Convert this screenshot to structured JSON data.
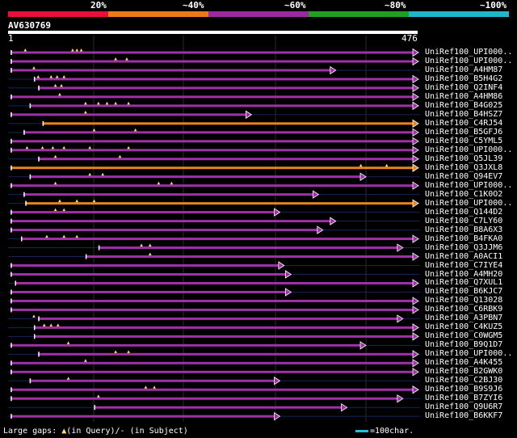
{
  "scale_labels": [
    "20%",
    "~40%",
    "~60%",
    "~80%",
    "~100%"
  ],
  "colorbar": [
    "#e8103a",
    "#e87a18",
    "#9a2aa0",
    "#20a020",
    "#20b8c8"
  ],
  "query": {
    "name": "AV630769",
    "start": "1",
    "end": "476"
  },
  "footer": {
    "gaps_prefix": "Large gaps: ",
    "triangle_glyph": "▲",
    "in_query": "(in Query)/",
    "dash": "-",
    "in_subject": " (in Subject)",
    "scale": "=100char."
  },
  "hits": [
    {
      "label": "UniRef100_UPI000..",
      "start": 3,
      "end": 476,
      "color": "purple",
      "gaps": [
        20,
        75,
        80,
        85
      ]
    },
    {
      "label": "UniRef100_UPI000..",
      "start": 3,
      "end": 476,
      "color": "purple",
      "gaps": [
        125,
        138
      ]
    },
    {
      "label": "UniRef100_A4HM87",
      "start": 3,
      "end": 380,
      "color": "purple",
      "gaps": [
        30
      ]
    },
    {
      "label": "UniRef100_B5H4G2",
      "start": 30,
      "end": 476,
      "color": "purple",
      "gaps": [
        35,
        50,
        57,
        65
      ]
    },
    {
      "label": "UniRef100_Q2INF4",
      "start": 35,
      "end": 476,
      "color": "purple",
      "gaps": [
        55,
        62
      ]
    },
    {
      "label": "UniRef100_A4HM86",
      "start": 3,
      "end": 476,
      "color": "purple",
      "gaps": [
        60
      ]
    },
    {
      "label": "UniRef100_B4G025",
      "start": 25,
      "end": 476,
      "color": "purple",
      "gaps": [
        90,
        105,
        115,
        125,
        140
      ]
    },
    {
      "label": "UniRef100_B4HSZ7",
      "start": 3,
      "end": 282,
      "color": "purple",
      "gaps": [
        90
      ]
    },
    {
      "label": "UniRef100_C4RJ54",
      "start": 40,
      "end": 476,
      "color": "orange",
      "gaps": []
    },
    {
      "label": "UniRef100_B5GFJ6",
      "start": 18,
      "end": 476,
      "color": "purple",
      "gaps": [
        100,
        148
      ]
    },
    {
      "label": "UniRef100_C5YML5",
      "start": 3,
      "end": 476,
      "color": "purple",
      "gaps": []
    },
    {
      "label": "UniRef100_UPI000..",
      "start": 3,
      "end": 476,
      "color": "purple",
      "gaps": [
        22,
        40,
        52,
        65,
        95,
        140
      ]
    },
    {
      "label": "UniRef100_Q5JL39",
      "start": 35,
      "end": 476,
      "color": "purple",
      "gaps": [
        55,
        130
      ]
    },
    {
      "label": "UniRef100_Q3JXL8",
      "start": 3,
      "end": 476,
      "color": "orange",
      "gaps": [
        410,
        440
      ]
    },
    {
      "label": "UniRef100_Q94EV7",
      "start": 25,
      "end": 415,
      "color": "purple",
      "gaps": [
        95,
        110
      ]
    },
    {
      "label": "UniRef100_UPI000..",
      "start": 3,
      "end": 476,
      "color": "purple",
      "gaps": [
        55,
        175,
        190
      ]
    },
    {
      "label": "UniRef100_C1K0O2",
      "start": 18,
      "end": 360,
      "color": "purple",
      "gaps": []
    },
    {
      "label": "UniRef100_UPI000..",
      "start": 20,
      "end": 476,
      "color": "orange",
      "gaps": [
        60,
        80,
        100
      ]
    },
    {
      "label": "UniRef100_Q144D2",
      "start": 3,
      "end": 315,
      "color": "purple",
      "gaps": [
        55,
        65
      ]
    },
    {
      "label": "UniRef100_C7LY60",
      "start": 3,
      "end": 380,
      "color": "purple",
      "gaps": []
    },
    {
      "label": "UniRef100_B8A6X3",
      "start": 3,
      "end": 365,
      "color": "purple",
      "gaps": []
    },
    {
      "label": "UniRef100_B4FKA0",
      "start": 15,
      "end": 476,
      "color": "purple",
      "gaps": [
        45,
        65,
        80
      ]
    },
    {
      "label": "UniRef100_Q3JJM6",
      "start": 105,
      "end": 458,
      "color": "purple",
      "gaps": [
        155,
        165
      ]
    },
    {
      "label": "UniRef100_A0ACI1",
      "start": 90,
      "end": 476,
      "color": "purple",
      "gaps": [
        165
      ]
    },
    {
      "label": "UniRef100_C7IYE4",
      "start": 3,
      "end": 320,
      "color": "purple",
      "gaps": []
    },
    {
      "label": "UniRef100_A4MH20",
      "start": 3,
      "end": 328,
      "color": "purple",
      "gaps": []
    },
    {
      "label": "UniRef100_Q7XUL1",
      "start": 8,
      "end": 476,
      "color": "purple",
      "gaps": []
    },
    {
      "label": "UniRef100_B6KJC7",
      "start": 3,
      "end": 328,
      "color": "purple",
      "gaps": []
    },
    {
      "label": "UniRef100_Q13028",
      "start": 3,
      "end": 476,
      "color": "purple",
      "gaps": []
    },
    {
      "label": "UniRef100_C6RBK9",
      "start": 3,
      "end": 476,
      "color": "purple",
      "gaps": []
    },
    {
      "label": "UniRef100_A3PBN7",
      "start": 35,
      "end": 458,
      "color": "purple",
      "gaps": [
        30
      ]
    },
    {
      "label": "UniRef100_C4KUZ5",
      "start": 30,
      "end": 476,
      "color": "purple",
      "gaps": [
        42,
        50,
        58
      ]
    },
    {
      "label": "UniRef100_C0WGM5",
      "start": 30,
      "end": 476,
      "color": "purple",
      "gaps": []
    },
    {
      "label": "UniRef100_B9Q1D7",
      "start": 3,
      "end": 415,
      "color": "purple",
      "gaps": [
        70
      ]
    },
    {
      "label": "UniRef100_UPI000..",
      "start": 35,
      "end": 476,
      "color": "purple",
      "gaps": [
        125,
        140
      ]
    },
    {
      "label": "UniRef100_A4K455",
      "start": 3,
      "end": 476,
      "color": "purple",
      "gaps": [
        90
      ]
    },
    {
      "label": "UniRef100_B2GWK0",
      "start": 3,
      "end": 476,
      "color": "purple",
      "gaps": []
    },
    {
      "label": "UniRef100_C2BJ30",
      "start": 25,
      "end": 315,
      "color": "purple",
      "gaps": [
        70
      ]
    },
    {
      "label": "UniRef100_B9S9J6",
      "start": 3,
      "end": 476,
      "color": "purple",
      "gaps": [
        160,
        170
      ]
    },
    {
      "label": "UniRef100_B7ZYI6",
      "start": 3,
      "end": 458,
      "color": "purple",
      "gaps": [
        105
      ]
    },
    {
      "label": "UniRef100_Q9U6R7",
      "start": 100,
      "end": 393,
      "color": "purple",
      "gaps": []
    },
    {
      "label": "UniRef100_B6KKF7",
      "start": 3,
      "end": 315,
      "color": "purple",
      "gaps": []
    }
  ]
}
